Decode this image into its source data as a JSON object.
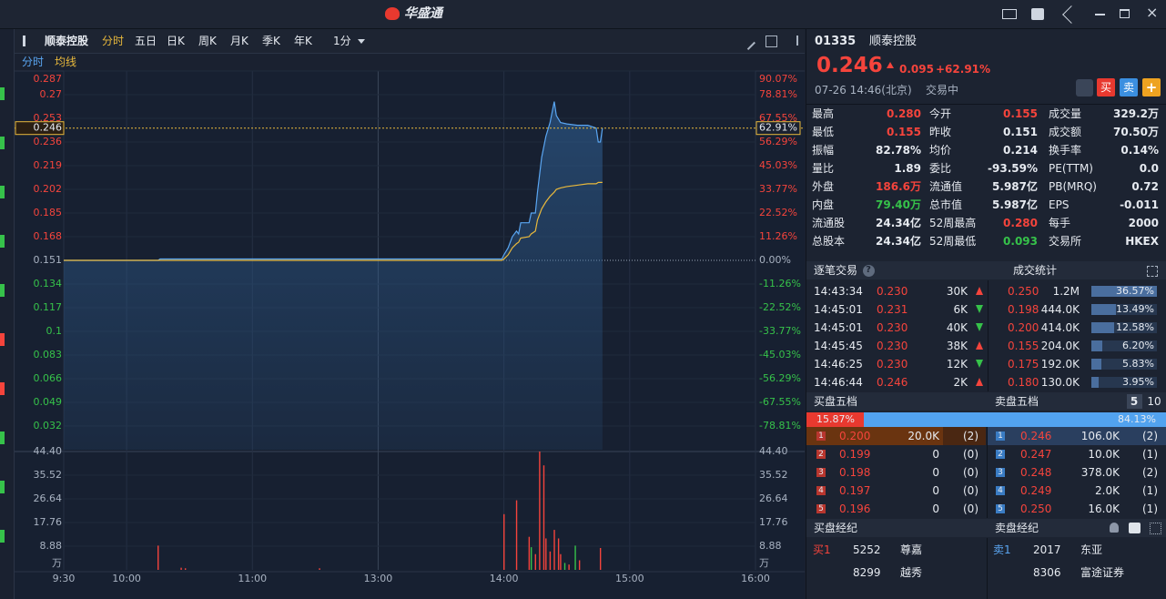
{
  "app": {
    "title": "华盛通"
  },
  "toolbar": {
    "stock": "顺泰控股",
    "periods": [
      "分时",
      "五日",
      "日K",
      "周K",
      "月K",
      "季K",
      "年K"
    ],
    "interval": "1分"
  },
  "chart_data": {
    "type": "line",
    "x": [
      "9:30",
      "10:15",
      "10:16",
      "13:59",
      "14:00",
      "14:02",
      "14:04",
      "14:06",
      "14:07",
      "14:08",
      "14:12",
      "14:13",
      "14:15",
      "14:16",
      "14:18",
      "14:20",
      "14:22",
      "14:24",
      "14:25",
      "14:27",
      "14:30",
      "14:35",
      "14:40",
      "14:44",
      "14:45",
      "14:46",
      "14:47"
    ],
    "series": [
      {
        "name": "分时",
        "color": "#5aa6f2",
        "values": [
          0.151,
          0.151,
          0.152,
          0.152,
          0.155,
          0.16,
          0.168,
          0.172,
          0.17,
          0.178,
          0.178,
          0.185,
          0.185,
          0.2,
          0.225,
          0.24,
          0.25,
          0.265,
          0.255,
          0.25,
          0.249,
          0.248,
          0.248,
          0.246,
          0.236,
          0.236,
          0.246
        ]
      },
      {
        "name": "均线",
        "color": "#e9b93c",
        "values": [
          0.151,
          0.151,
          0.151,
          0.151,
          0.152,
          0.155,
          0.16,
          0.163,
          0.164,
          0.167,
          0.168,
          0.17,
          0.172,
          0.18,
          0.188,
          0.193,
          0.197,
          0.2,
          0.202,
          0.203,
          0.204,
          0.205,
          0.206,
          0.206,
          0.207,
          0.207,
          0.207
        ]
      }
    ],
    "xticks": [
      "9:30",
      "10:00",
      "11:00",
      "13:00",
      "14:00",
      "15:00",
      "16:00"
    ],
    "ylim": [
      0.015,
      0.287
    ],
    "yticks": [
      0.287,
      0.27,
      0.253,
      0.236,
      0.219,
      0.202,
      0.185,
      0.168,
      0.151,
      0.134,
      0.117,
      0.1,
      0.083,
      0.066,
      0.049,
      0.032
    ],
    "y2lim": [
      -90.07,
      90.07
    ],
    "y2ticks": [
      {
        "value": 90.07,
        "label": "90.07%"
      },
      {
        "value": 78.81,
        "label": "78.81%"
      },
      {
        "value": 67.55,
        "label": "67.55%"
      },
      {
        "value": 56.29,
        "label": "56.29%"
      },
      {
        "value": 45.03,
        "label": "45.03%"
      },
      {
        "value": 33.77,
        "label": "33.77%"
      },
      {
        "value": 22.52,
        "label": "22.52%"
      },
      {
        "value": 11.26,
        "label": "11.26%"
      },
      {
        "value": 0,
        "label": "0.00%"
      },
      {
        "value": -11.26,
        "label": "-11.26%"
      },
      {
        "value": -22.52,
        "label": "-22.52%"
      },
      {
        "value": -33.77,
        "label": "-33.77%"
      },
      {
        "value": -45.03,
        "label": "-45.03%"
      },
      {
        "value": -56.29,
        "label": "-56.29%"
      },
      {
        "value": -67.55,
        "label": "-67.55%"
      },
      {
        "value": -78.81,
        "label": "-78.81%"
      }
    ],
    "price_line": {
      "value": 0.246,
      "pct": {
        "value": 62.91,
        "label": "62.91%"
      }
    },
    "volume": {
      "x": [
        "10:15",
        "10:26",
        "10:28",
        "11:32",
        "14:00",
        "14:06",
        "14:12",
        "14:13",
        "14:15",
        "14:17",
        "14:19",
        "14:20",
        "14:22",
        "14:24",
        "14:26",
        "14:27",
        "14:29",
        "14:31",
        "14:34",
        "14:36",
        "14:46"
      ],
      "values": [
        9.1,
        0.8,
        0.6,
        0.6,
        20.9,
        26.1,
        12.4,
        8.5,
        5.9,
        44.4,
        39.2,
        11.8,
        6.9,
        15,
        11.8,
        5.9,
        2.6,
        2,
        9.1,
        3.6,
        8.2
      ],
      "colors": [
        "#f5443c",
        "#f5443c",
        "#f5443c",
        "#f5443c",
        "#f5443c",
        "#f5443c",
        "#f5443c",
        "#36c24a",
        "#f5443c",
        "#f5443c",
        "#f5443c",
        "#f5443c",
        "#f5443c",
        "#f5443c",
        "#f5443c",
        "#f5443c",
        "#36c24a",
        "#f5443c",
        "#36c24a",
        "#f5443c",
        "#f5443c"
      ],
      "ylim": [
        0,
        44.4
      ],
      "yticks": [
        {
          "value": 44.4,
          "label": "44.40"
        },
        35.52,
        26.64,
        17.76,
        8.88
      ],
      "unit": "万"
    }
  },
  "quote": {
    "code": "01335",
    "name": "顺泰控股",
    "price": "0.246",
    "change": "0.095",
    "change_pct": "+62.91%",
    "time": "07-26 14:46(北京)",
    "status": "交易中",
    "buy": "买",
    "sell": "卖",
    "add": "+"
  },
  "stats": {
    "rows": [
      [
        "最高",
        "0.280",
        "今开",
        "0.155",
        "成交量",
        "329.2万"
      ],
      [
        "最低",
        "0.155",
        "昨收",
        "0.151",
        "成交额",
        "70.50万"
      ],
      [
        "振幅",
        "82.78%",
        "均价",
        "0.214",
        "换手率",
        "0.14%"
      ],
      [
        "量比",
        "1.89",
        "委比",
        "-93.59%",
        "PE(TTM)",
        "0.0"
      ],
      [
        "外盘",
        "186.6万",
        "流通值",
        "5.987亿",
        "PB(MRQ)",
        "0.72"
      ],
      [
        "内盘",
        "79.40万",
        "总市值",
        "5.987亿",
        "EPS",
        "-0.011"
      ],
      [
        "流通股",
        "24.34亿",
        "52周最高",
        "0.280",
        "每手",
        "2000"
      ],
      [
        "总股本",
        "24.34亿",
        "52周最低",
        "0.093",
        "交易所",
        "HKEX"
      ]
    ]
  },
  "trades": {
    "title": "逐笔交易",
    "help": "?",
    "rows": [
      [
        "14:43:34",
        "0.230",
        "30K"
      ],
      [
        "14:45:01",
        "0.231",
        "6K"
      ],
      [
        "14:45:01",
        "0.230",
        "40K"
      ],
      [
        "14:45:45",
        "0.230",
        "38K"
      ],
      [
        "14:46:25",
        "0.230",
        "12K"
      ],
      [
        "14:46:44",
        "0.246",
        "2K"
      ]
    ]
  },
  "trade_stats": {
    "title": "成交统计",
    "rows": [
      [
        "0.250",
        "1.2M",
        "36.57%"
      ],
      [
        "0.198",
        "444.0K",
        "13.49%"
      ],
      [
        "0.200",
        "414.0K",
        "12.58%"
      ],
      [
        "0.155",
        "204.0K",
        "6.20%"
      ],
      [
        "0.175",
        "192.0K",
        "5.83%"
      ],
      [
        "0.180",
        "130.0K",
        "3.95%"
      ]
    ]
  },
  "order_book": {
    "bid_title": "买盘五档",
    "ask_title": "卖盘五档",
    "depth_options": [
      "5",
      "10"
    ],
    "bid_ratio": "15.87%",
    "ask_ratio": "84.13%",
    "bids": [
      [
        "1",
        "0.200",
        "20.0K",
        "(2)"
      ],
      [
        "2",
        "0.199",
        "0",
        "(0)"
      ],
      [
        "3",
        "0.198",
        "0",
        "(0)"
      ],
      [
        "4",
        "0.197",
        "0",
        "(0)"
      ],
      [
        "5",
        "0.196",
        "0",
        "(0)"
      ]
    ],
    "asks": [
      [
        "1",
        "0.246",
        "106.0K",
        "(2)"
      ],
      [
        "2",
        "0.247",
        "10.0K",
        "(1)"
      ],
      [
        "3",
        "0.248",
        "378.0K",
        "(2)"
      ],
      [
        "4",
        "0.249",
        "2.0K",
        "(1)"
      ],
      [
        "5",
        "0.250",
        "16.0K",
        "(1)"
      ]
    ]
  },
  "brokers": {
    "bid_title": "买盘经纪",
    "ask_title": "卖盘经纪",
    "bids": [
      [
        "买1",
        "5252",
        "尊嘉"
      ],
      [
        "",
        "8299",
        "越秀"
      ]
    ],
    "asks": [
      [
        "卖1",
        "2017",
        "东亚"
      ],
      [
        "",
        "8306",
        "富途证券"
      ]
    ]
  }
}
